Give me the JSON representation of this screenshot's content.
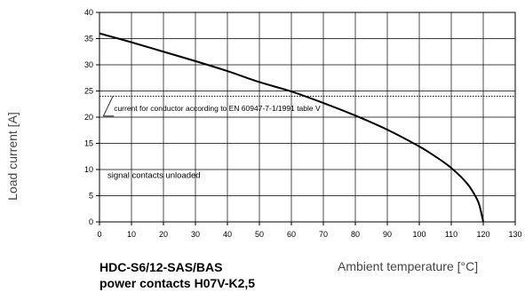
{
  "chart_data": {
    "type": "line",
    "xlabel": "Ambient temperature [°C]",
    "ylabel": "Load current [A]",
    "xlim": [
      0,
      130
    ],
    "ylim": [
      0,
      40
    ],
    "xticks": [
      "0",
      "10",
      "20",
      "30",
      "40",
      "50",
      "60",
      "70",
      "80",
      "90",
      "100",
      "110",
      "120",
      "130"
    ],
    "yticks": [
      "0",
      "5",
      "10",
      "15",
      "20",
      "25",
      "30",
      "35",
      "40"
    ],
    "grid": true,
    "product_line1": "HDC-S6/12-SAS/BAS",
    "product_line2": "power contacts H07V-K2,5",
    "annotation_reference": "current for conductor according to EN 60947-7-1/1991 table V",
    "annotation_signal": "signal contacts unloaded",
    "reference_line": {
      "y": 24
    },
    "series": [
      {
        "x": [
          0,
          10,
          20,
          30,
          40,
          50,
          60,
          70,
          80,
          90,
          100,
          105,
          110,
          115,
          118,
          119,
          120
        ],
        "y": [
          36,
          34.3,
          32.5,
          30.7,
          28.8,
          26.7,
          24.9,
          22.7,
          20.3,
          17.6,
          14.4,
          12.5,
          10.3,
          7.3,
          4.4,
          2.7,
          0
        ]
      }
    ]
  }
}
